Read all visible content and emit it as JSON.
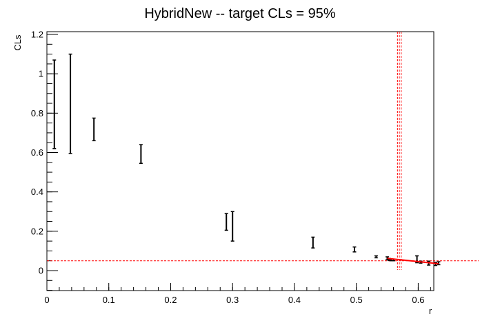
{
  "chart_data": {
    "type": "scatter",
    "title": "HybridNew -- target CLs = 95%",
    "xlabel": "r",
    "ylabel": "CLs",
    "xlim": [
      0,
      0.635
    ],
    "ylim": [
      -0.1,
      1.22
    ],
    "grid": false,
    "x_ticks": [
      0,
      0.1,
      0.2,
      0.3,
      0.4,
      0.5,
      0.6
    ],
    "x_tick_labels": [
      "0",
      "0.1",
      "0.2",
      "0.3",
      "0.4",
      "0.5",
      "0.6"
    ],
    "y_ticks": [
      0,
      0.2,
      0.4,
      0.6,
      0.8,
      1,
      1.2
    ],
    "y_tick_labels": [
      "0",
      "0.2",
      "0.4",
      "0.6",
      "0.8",
      "1",
      "1.2"
    ],
    "series": [
      {
        "points": [
          {
            "x": 0.012,
            "low": 0.62,
            "high": 1.07
          },
          {
            "x": 0.038,
            "low": 0.595,
            "high": 1.1
          },
          {
            "x": 0.076,
            "low": 0.66,
            "high": 0.775
          },
          {
            "x": 0.152,
            "low": 0.545,
            "high": 0.64
          },
          {
            "x": 0.29,
            "low": 0.205,
            "high": 0.29
          },
          {
            "x": 0.3,
            "low": 0.15,
            "high": 0.3
          },
          {
            "x": 0.43,
            "low": 0.115,
            "high": 0.17
          },
          {
            "x": 0.497,
            "low": 0.095,
            "high": 0.12
          },
          {
            "x": 0.532,
            "low": 0.065,
            "high": 0.075
          },
          {
            "x": 0.55,
            "low": 0.055,
            "high": 0.07
          },
          {
            "x": 0.553,
            "low": 0.052,
            "high": 0.062
          },
          {
            "x": 0.556,
            "low": 0.05,
            "high": 0.06
          },
          {
            "x": 0.56,
            "low": 0.05,
            "high": 0.058
          },
          {
            "x": 0.598,
            "low": 0.04,
            "high": 0.075
          },
          {
            "x": 0.604,
            "low": 0.038,
            "high": 0.048
          },
          {
            "x": 0.617,
            "low": 0.028,
            "high": 0.048
          },
          {
            "x": 0.628,
            "low": 0.026,
            "high": 0.042
          },
          {
            "x": 0.633,
            "low": 0.03,
            "high": 0.045
          }
        ]
      }
    ],
    "fit_line": {
      "x": [
        0.55,
        0.633
      ],
      "y": [
        0.062,
        0.035
      ],
      "color": "#ff0000"
    },
    "target_line": {
      "y": 0.05,
      "color": "#ff0000"
    },
    "limit_lines": {
      "x": [
        0.5665,
        0.5695,
        0.5725
      ],
      "color": "#ff0000"
    }
  }
}
